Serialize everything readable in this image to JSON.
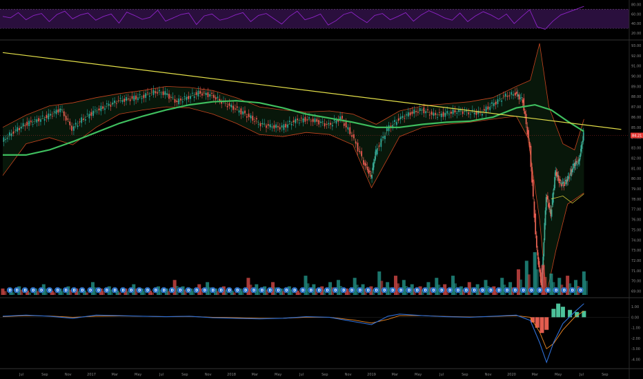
{
  "colors": {
    "background": "#000000",
    "rsi_line": "#8e24c7",
    "rsi_band": "#2a0f3d",
    "sma_long": "#3fbf5f",
    "trendline": "#e6e24a",
    "bollinger": "#c8451f",
    "candle_up": "#26a69a",
    "candle_down": "#ef5350",
    "macd_line": "#2f6fd6",
    "signal_line": "#f08a24",
    "histogram_up": "#4cc29a",
    "histogram_down": "#e35d4f",
    "dividend_badge": "#1565c0",
    "price_tag": "#e53935"
  },
  "price_tag": {
    "label": "84.21",
    "value": 84.21
  },
  "dividend_badge_label": "D",
  "chart_data": [
    {
      "type": "line",
      "name": "rsi-panel",
      "y_ticks": [
        {
          "label": "80.00",
          "value": 80
        },
        {
          "label": "60.00",
          "value": 60
        },
        {
          "label": "40.00",
          "value": 40
        },
        {
          "label": "20.00",
          "value": 20
        }
      ],
      "band": [
        30,
        70
      ],
      "series": [
        {
          "values": [
            55,
            52,
            63,
            48,
            57,
            61,
            44,
            59,
            66,
            50,
            58,
            62,
            47,
            55,
            60,
            41,
            64,
            57,
            49,
            53,
            68,
            45,
            52,
            59,
            62,
            38,
            56,
            60,
            47,
            51,
            58,
            63,
            44,
            57,
            61,
            50,
            39,
            55,
            66,
            48,
            53,
            60,
            37,
            46,
            59,
            64,
            52,
            42,
            57,
            61,
            48,
            55,
            63,
            45,
            58,
            67,
            60,
            52,
            47,
            62,
            44,
            56,
            65,
            58,
            49,
            60,
            40,
            55,
            69,
            33,
            28,
            45,
            58,
            64,
            70,
            76
          ]
        }
      ]
    },
    {
      "type": "line",
      "name": "price-panel",
      "x_ticks": [
        "Jul",
        "Sep",
        "Nov",
        "2017",
        "Mar",
        "May",
        "Jul",
        "Sep",
        "Nov",
        "2018",
        "Mar",
        "May",
        "Jul",
        "Sep",
        "Nov",
        "2019",
        "Mar",
        "May",
        "Jul",
        "Sep",
        "Nov",
        "2020",
        "Mar",
        "May",
        "Jul",
        "Sep"
      ],
      "y_ticks": [
        {
          "label": "93.00",
          "value": 93
        },
        {
          "label": "92.00",
          "value": 92
        },
        {
          "label": "91.00",
          "value": 91
        },
        {
          "label": "90.00",
          "value": 90
        },
        {
          "label": "89.00",
          "value": 89
        },
        {
          "label": "88.00",
          "value": 88
        },
        {
          "label": "87.00",
          "value": 87
        },
        {
          "label": "86.00",
          "value": 86
        },
        {
          "label": "85.00",
          "value": 85
        },
        {
          "label": "84.00",
          "value": 84
        },
        {
          "label": "83.00",
          "value": 83
        },
        {
          "label": "82.00",
          "value": 82
        },
        {
          "label": "81.00",
          "value": 81
        },
        {
          "label": "80.00",
          "value": 80
        },
        {
          "label": "79.00",
          "value": 79
        },
        {
          "label": "78.00",
          "value": 78
        },
        {
          "label": "77.00",
          "value": 77
        },
        {
          "label": "76.00",
          "value": 76
        },
        {
          "label": "75.00",
          "value": 75
        },
        {
          "label": "74.00",
          "value": 74
        },
        {
          "label": "73.00",
          "value": 73
        },
        {
          "label": "72.00",
          "value": 72
        },
        {
          "label": "71.00",
          "value": 71
        },
        {
          "label": "70.00",
          "value": 70
        },
        {
          "label": "69.00",
          "value": 69
        }
      ],
      "ylim": [
        68.5,
        93.4
      ],
      "x_months_range": [
        0,
        26.5
      ],
      "price": [
        [
          0,
          83.6
        ],
        [
          0.5,
          84.6
        ],
        [
          1,
          85.3
        ],
        [
          1.5,
          85.7
        ],
        [
          2,
          86.1
        ],
        [
          2.5,
          86.8
        ],
        [
          3,
          84.9
        ],
        [
          3.5,
          85.9
        ],
        [
          4,
          86.6
        ],
        [
          4.5,
          87.1
        ],
        [
          5,
          87.6
        ],
        [
          5.5,
          87.8
        ],
        [
          6,
          88.0
        ],
        [
          6.5,
          88.5
        ],
        [
          7,
          88.3
        ],
        [
          7.5,
          87.5
        ],
        [
          8,
          88.0
        ],
        [
          8.5,
          88.4
        ],
        [
          9,
          88.1
        ],
        [
          9.5,
          87.4
        ],
        [
          10,
          86.8
        ],
        [
          10.5,
          86.2
        ],
        [
          11,
          85.4
        ],
        [
          11.5,
          85.1
        ],
        [
          12,
          85.0
        ],
        [
          12.5,
          85.6
        ],
        [
          13,
          85.8
        ],
        [
          13.5,
          85.6
        ],
        [
          14,
          85.2
        ],
        [
          14.5,
          85.9
        ],
        [
          15,
          84.2
        ],
        [
          15.5,
          81.6
        ],
        [
          15.8,
          80.2
        ],
        [
          16,
          82.6
        ],
        [
          16.5,
          84.8
        ],
        [
          17,
          85.8
        ],
        [
          17.5,
          86.4
        ],
        [
          18,
          86.7
        ],
        [
          18.5,
          86.2
        ],
        [
          19,
          86.3
        ],
        [
          19.5,
          86.6
        ],
        [
          20,
          86.5
        ],
        [
          20.5,
          86.4
        ],
        [
          21,
          87.2
        ],
        [
          21.5,
          88.0
        ],
        [
          22,
          88.3
        ],
        [
          22.3,
          87.6
        ],
        [
          22.6,
          83.0
        ],
        [
          22.9,
          73.0
        ],
        [
          23.1,
          69.5
        ],
        [
          23.3,
          78.4
        ],
        [
          23.5,
          76.5
        ],
        [
          23.7,
          80.7
        ],
        [
          23.9,
          79.5
        ],
        [
          24.1,
          79.5
        ],
        [
          24.3,
          80.3
        ],
        [
          24.5,
          81.4
        ],
        [
          24.7,
          81.7
        ],
        [
          24.9,
          84.3
        ]
      ],
      "sma_long": [
        [
          0,
          82.3
        ],
        [
          1,
          82.3
        ],
        [
          2,
          82.8
        ],
        [
          3,
          83.6
        ],
        [
          4,
          84.5
        ],
        [
          5,
          85.4
        ],
        [
          6,
          86.1
        ],
        [
          7,
          86.7
        ],
        [
          8,
          87.2
        ],
        [
          9,
          87.5
        ],
        [
          10,
          87.6
        ],
        [
          11,
          87.4
        ],
        [
          12,
          86.9
        ],
        [
          13,
          86.3
        ],
        [
          14,
          85.9
        ],
        [
          15,
          85.5
        ],
        [
          16,
          85.0
        ],
        [
          17,
          85.0
        ],
        [
          18,
          85.3
        ],
        [
          19,
          85.5
        ],
        [
          20,
          85.6
        ],
        [
          21,
          86.0
        ],
        [
          22,
          86.9
        ],
        [
          22.8,
          87.2
        ],
        [
          23.5,
          86.7
        ],
        [
          24.2,
          85.6
        ],
        [
          24.9,
          84.6
        ]
      ],
      "trendline": [
        [
          0,
          92.3
        ],
        [
          26.5,
          84.8
        ]
      ],
      "bb_upper": [
        [
          0,
          85.0
        ],
        [
          1,
          86.2
        ],
        [
          2,
          87.1
        ],
        [
          3,
          87.4
        ],
        [
          4,
          87.9
        ],
        [
          5,
          88.3
        ],
        [
          6,
          88.6
        ],
        [
          7,
          89.0
        ],
        [
          8,
          88.9
        ],
        [
          9,
          88.6
        ],
        [
          10,
          87.9
        ],
        [
          11,
          87.0
        ],
        [
          12,
          86.7
        ],
        [
          13,
          86.5
        ],
        [
          14,
          86.6
        ],
        [
          15,
          86.3
        ],
        [
          16,
          85.3
        ],
        [
          17,
          86.6
        ],
        [
          18,
          87.1
        ],
        [
          19,
          87.3
        ],
        [
          20,
          87.5
        ],
        [
          21,
          87.9
        ],
        [
          22,
          89.0
        ],
        [
          22.6,
          89.6
        ],
        [
          23.0,
          93.2
        ],
        [
          23.4,
          87.0
        ],
        [
          24,
          83.4
        ],
        [
          24.5,
          82.8
        ],
        [
          24.9,
          85.8
        ]
      ],
      "bb_lower": [
        [
          0,
          80.3
        ],
        [
          1,
          83.4
        ],
        [
          2,
          84.0
        ],
        [
          3,
          83.3
        ],
        [
          4,
          85.0
        ],
        [
          5,
          86.3
        ],
        [
          6,
          86.7
        ],
        [
          7,
          87.0
        ],
        [
          8,
          86.9
        ],
        [
          9,
          86.3
        ],
        [
          10,
          85.4
        ],
        [
          11,
          84.3
        ],
        [
          12,
          84.1
        ],
        [
          13,
          84.5
        ],
        [
          14,
          84.3
        ],
        [
          15,
          83.3
        ],
        [
          15.8,
          79.1
        ],
        [
          16.5,
          82.0
        ],
        [
          17,
          84.1
        ],
        [
          18,
          85.0
        ],
        [
          19,
          85.3
        ],
        [
          20,
          85.5
        ],
        [
          21,
          85.8
        ],
        [
          22,
          86.1
        ],
        [
          22.5,
          84.0
        ],
        [
          23,
          76.0
        ],
        [
          23.3,
          68.7
        ],
        [
          23.7,
          73.0
        ],
        [
          24.2,
          77.5
        ],
        [
          24.9,
          78.6
        ]
      ],
      "annotation_lines": [
        [
          [
            23.5,
            78.0
          ],
          [
            24.0,
            78.3
          ],
          [
            24.4,
            77.6
          ],
          [
            24.9,
            78.5
          ]
        ]
      ]
    },
    {
      "type": "bar",
      "name": "volume-panel",
      "values": [
        3,
        2,
        4,
        2,
        3,
        5,
        2,
        3,
        4,
        3,
        2,
        6,
        3,
        4,
        2,
        3,
        5,
        3,
        2,
        4,
        3,
        7,
        4,
        3,
        5,
        6,
        3,
        4,
        2,
        3,
        8,
        5,
        4,
        6,
        3,
        4,
        2,
        9,
        5,
        4,
        6,
        7,
        3,
        8,
        5,
        4,
        11,
        6,
        9,
        7,
        5,
        4,
        6,
        8,
        5,
        9,
        4,
        6,
        5,
        7,
        4,
        8,
        6,
        12,
        16,
        20,
        14,
        10,
        8,
        9,
        7,
        11
      ],
      "dividend_months": [
        0.3,
        0.6,
        0.95,
        1.3,
        1.65,
        2.0,
        2.35,
        2.7,
        3.05,
        3.4,
        3.75,
        4.1,
        4.45,
        4.8,
        5.15,
        5.5,
        5.85,
        6.2,
        6.55,
        6.9,
        7.25,
        7.6,
        7.95,
        8.3,
        8.65,
        9.0,
        9.35,
        9.7,
        10.05,
        10.4,
        10.75,
        11.1,
        11.45,
        11.8,
        12.15,
        12.5,
        12.85,
        13.2,
        13.55,
        13.9,
        14.25,
        14.6,
        14.95,
        15.3,
        15.65,
        16.0,
        16.35,
        16.7,
        17.05,
        17.4,
        17.75,
        18.1,
        18.45,
        18.8,
        19.15,
        19.5,
        19.85,
        20.2,
        20.55,
        20.9,
        21.25,
        21.6,
        21.95,
        22.3,
        22.65,
        23.0,
        23.35,
        23.7,
        24.05,
        24.4,
        24.75
      ]
    },
    {
      "type": "line",
      "name": "macd-panel",
      "y_ticks": [
        {
          "label": "1.00",
          "value": 1
        },
        {
          "label": "0.00",
          "value": 0
        },
        {
          "label": "-1.00",
          "value": -1
        },
        {
          "label": "-2.00",
          "value": -2
        },
        {
          "label": "-3.00",
          "value": -3
        },
        {
          "label": "-4.00",
          "value": -4
        }
      ],
      "ylim": [
        -4.7,
        1.6
      ],
      "macd": [
        [
          0,
          0.1
        ],
        [
          1,
          0.2
        ],
        [
          2,
          0.1
        ],
        [
          3,
          -0.1
        ],
        [
          4,
          0.2
        ],
        [
          5,
          0.15
        ],
        [
          6,
          0.1
        ],
        [
          7,
          0.05
        ],
        [
          8,
          0.1
        ],
        [
          9,
          -0.05
        ],
        [
          10,
          -0.1
        ],
        [
          11,
          -0.15
        ],
        [
          12,
          -0.1
        ],
        [
          13,
          0.05
        ],
        [
          14,
          0.0
        ],
        [
          15,
          -0.4
        ],
        [
          15.8,
          -0.7
        ],
        [
          16.5,
          0.1
        ],
        [
          17,
          0.3
        ],
        [
          18,
          0.15
        ],
        [
          19,
          0.05
        ],
        [
          20,
          0.0
        ],
        [
          21,
          0.1
        ],
        [
          22,
          0.2
        ],
        [
          22.6,
          -0.3
        ],
        [
          23.0,
          -2.4
        ],
        [
          23.3,
          -4.3
        ],
        [
          23.6,
          -2.4
        ],
        [
          24.0,
          -0.6
        ],
        [
          24.5,
          0.5
        ],
        [
          24.9,
          1.3
        ]
      ],
      "signal": [
        [
          0,
          0.05
        ],
        [
          1,
          0.15
        ],
        [
          2,
          0.12
        ],
        [
          3,
          0.0
        ],
        [
          4,
          0.1
        ],
        [
          5,
          0.12
        ],
        [
          6,
          0.1
        ],
        [
          7,
          0.06
        ],
        [
          8,
          0.08
        ],
        [
          9,
          0.0
        ],
        [
          10,
          -0.05
        ],
        [
          11,
          -0.1
        ],
        [
          12,
          -0.1
        ],
        [
          13,
          0.0
        ],
        [
          14,
          0.0
        ],
        [
          15,
          -0.25
        ],
        [
          15.8,
          -0.55
        ],
        [
          16.5,
          -0.2
        ],
        [
          17,
          0.15
        ],
        [
          18,
          0.15
        ],
        [
          19,
          0.08
        ],
        [
          20,
          0.03
        ],
        [
          21,
          0.07
        ],
        [
          22,
          0.15
        ],
        [
          22.6,
          0.0
        ],
        [
          23.0,
          -1.4
        ],
        [
          23.3,
          -3.0
        ],
        [
          23.6,
          -2.5
        ],
        [
          24.0,
          -1.2
        ],
        [
          24.5,
          0.0
        ],
        [
          24.9,
          0.6
        ]
      ],
      "histogram": [
        [
          22.7,
          -0.5
        ],
        [
          22.9,
          -1.0
        ],
        [
          23.1,
          -1.5
        ],
        [
          23.3,
          -1.2
        ],
        [
          23.6,
          0.8
        ],
        [
          23.8,
          1.3
        ],
        [
          24.0,
          1.0
        ],
        [
          24.3,
          0.7
        ],
        [
          24.6,
          0.5
        ],
        [
          24.9,
          0.6
        ]
      ]
    }
  ]
}
